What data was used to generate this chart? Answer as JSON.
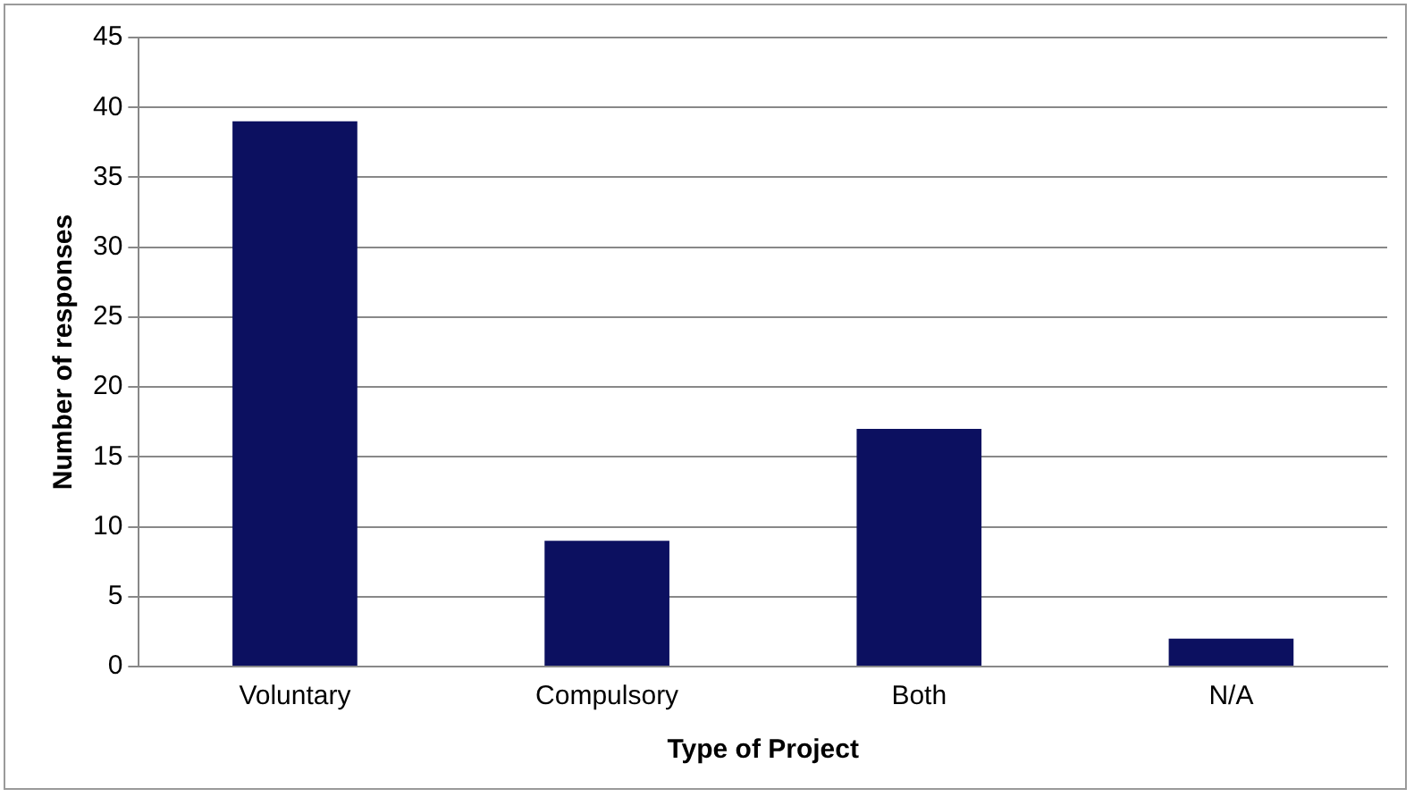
{
  "chart_data": {
    "type": "bar",
    "xlabel": "Type of Project",
    "ylabel": "Number of responses",
    "categories": [
      "Voluntary",
      "Compulsory",
      "Both",
      "N/A"
    ],
    "values": [
      39,
      9,
      17,
      2
    ],
    "color": "#0c1060",
    "ylim": [
      0,
      45
    ],
    "yticks": [
      0,
      5,
      10,
      15,
      20,
      25,
      30,
      35,
      40,
      45
    ],
    "grid": "y",
    "legend": false
  }
}
